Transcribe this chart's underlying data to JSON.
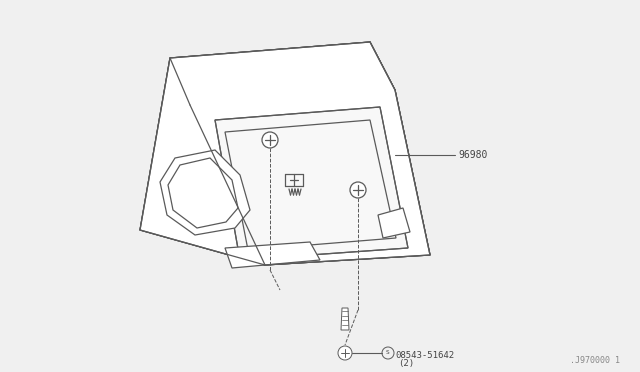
{
  "bg_color": "#f0f0f0",
  "line_color": "#5a5a5a",
  "text_color": "#444444",
  "part_96980_label": "96980",
  "watermark": ".J970000 1",
  "fig_width": 6.4,
  "fig_height": 3.72,
  "dpi": 100
}
